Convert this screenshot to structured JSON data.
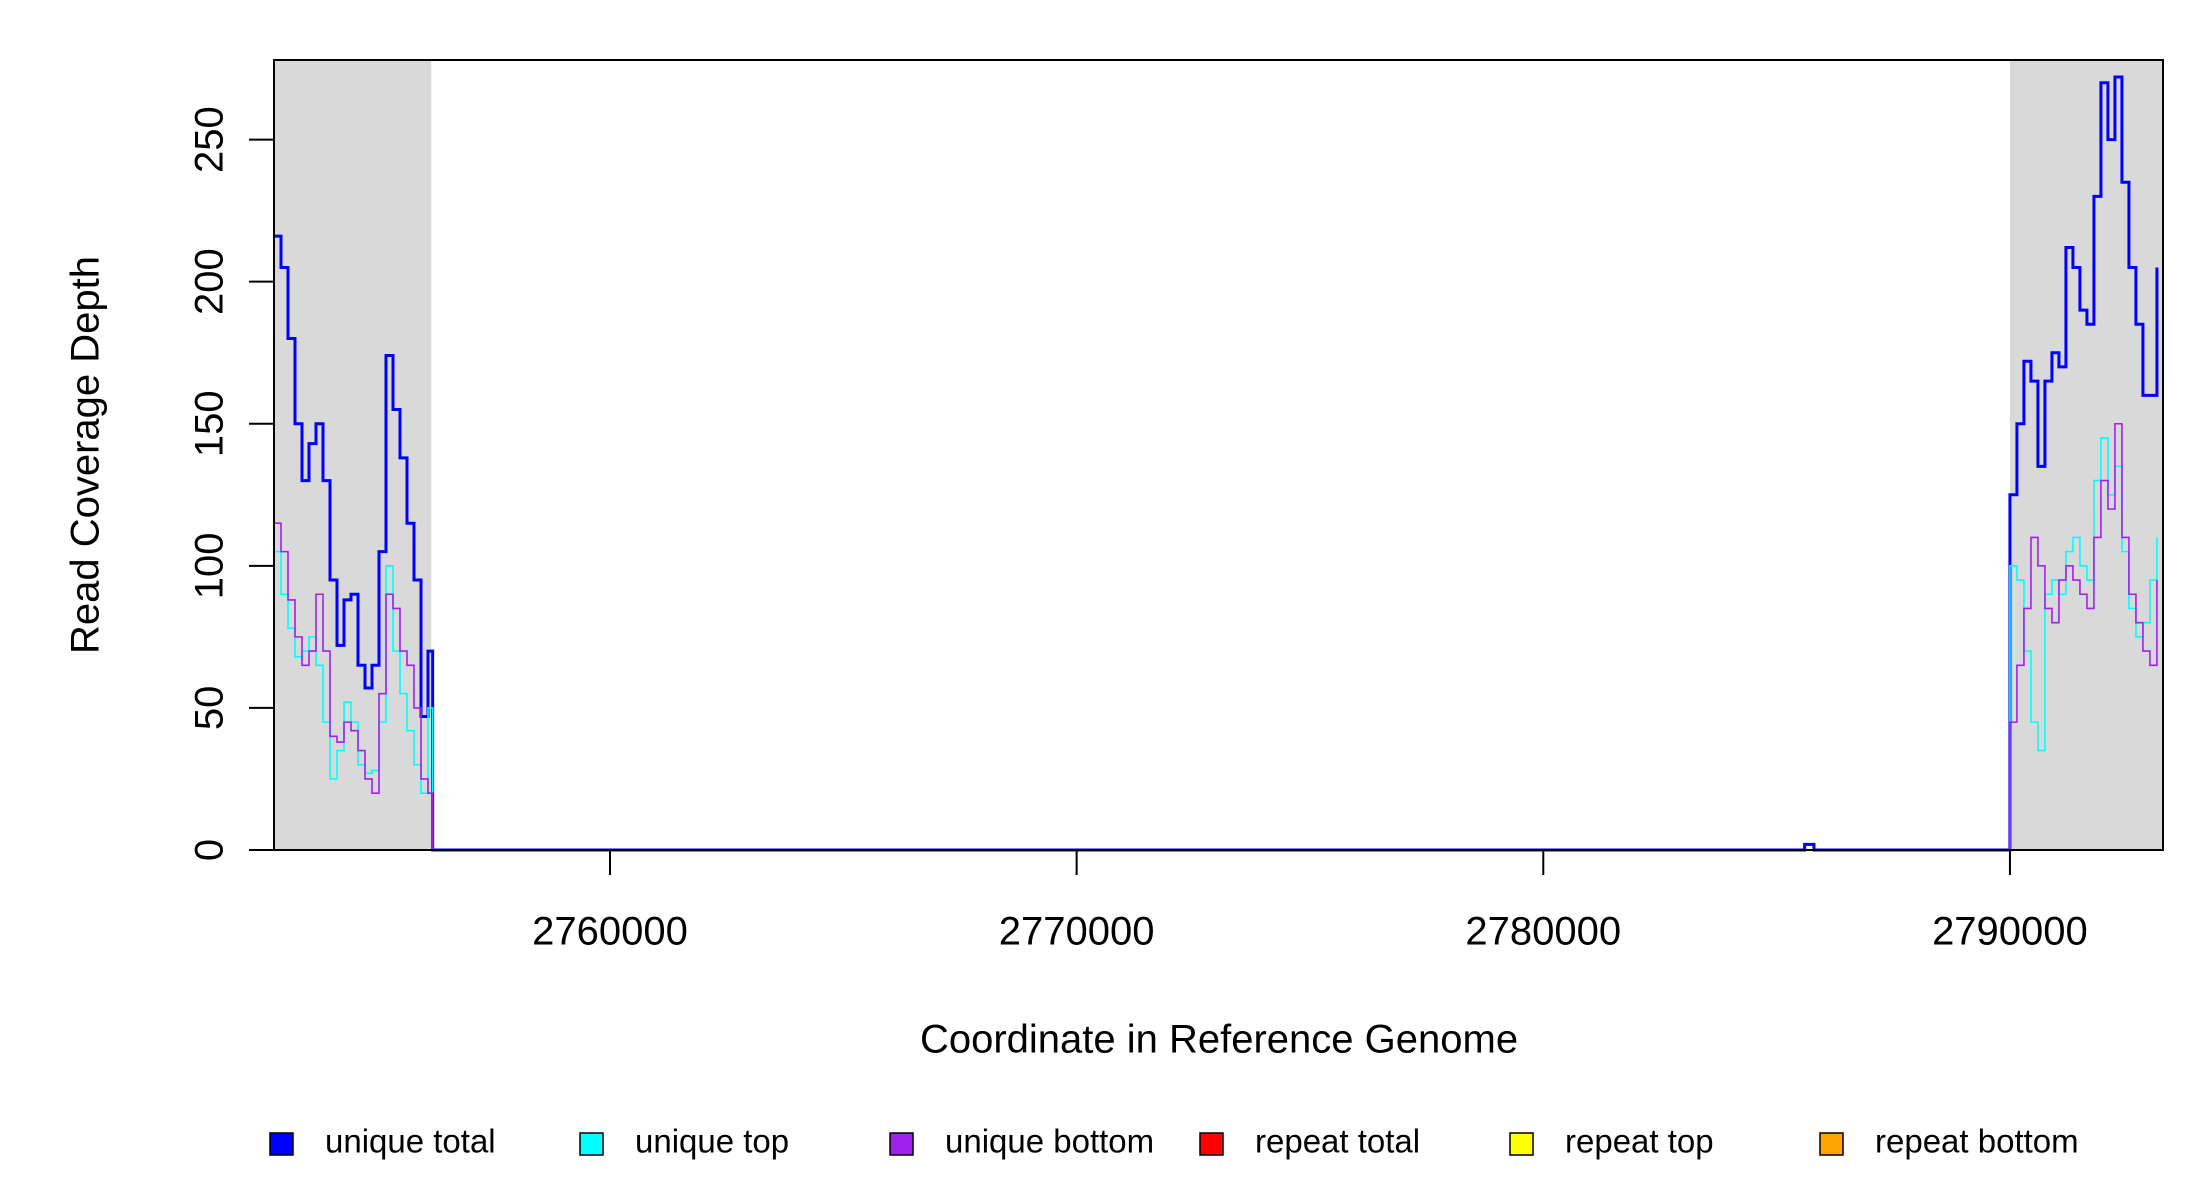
{
  "chart_data": {
    "type": "step",
    "x_label": "Coordinate in Reference Genome",
    "y_label": "Read Coverage Depth",
    "xlim": [
      2752800,
      2793280
    ],
    "ylim": [
      0,
      278
    ],
    "xticks": [
      2760000,
      2770000,
      2780000,
      2790000
    ],
    "yticks": [
      0,
      50,
      100,
      150,
      200,
      250
    ],
    "shaded_regions": [
      [
        2752800,
        2756170
      ],
      [
        2790000,
        2793280
      ]
    ],
    "legend_position": "bottom",
    "x": [
      2752800,
      2752950,
      2753100,
      2753250,
      2753400,
      2753550,
      2753700,
      2753850,
      2754000,
      2754150,
      2754300,
      2754450,
      2754600,
      2754750,
      2754900,
      2755050,
      2755200,
      2755350,
      2755500,
      2755650,
      2755800,
      2755950,
      2756100,
      2756200,
      2785600,
      2785800,
      2790000,
      2790150,
      2790300,
      2790450,
      2790600,
      2790750,
      2790900,
      2791050,
      2791200,
      2791350,
      2791500,
      2791650,
      2791800,
      2791950,
      2792100,
      2792250,
      2792400,
      2792550,
      2792700,
      2792850,
      2793000,
      2793150
    ],
    "series": [
      {
        "name": "unique total",
        "color": "#0000ff",
        "width": 3,
        "values": [
          216,
          205,
          180,
          150,
          130,
          143,
          150,
          130,
          95,
          72,
          88,
          90,
          65,
          57,
          65,
          105,
          174,
          155,
          138,
          115,
          95,
          47,
          70,
          0,
          2,
          0,
          125,
          150,
          172,
          165,
          135,
          165,
          175,
          170,
          212,
          205,
          190,
          185,
          230,
          270,
          250,
          272,
          235,
          205,
          185,
          160,
          160,
          205
        ]
      },
      {
        "name": "unique top",
        "color": "#00ffff",
        "width": 1.6,
        "values": [
          105,
          90,
          78,
          68,
          70,
          75,
          65,
          45,
          25,
          35,
          52,
          45,
          30,
          27,
          28,
          45,
          100,
          70,
          55,
          42,
          30,
          20,
          50,
          0,
          0,
          0,
          100,
          95,
          70,
          45,
          35,
          90,
          95,
          90,
          105,
          110,
          100,
          95,
          130,
          145,
          125,
          135,
          105,
          85,
          75,
          80,
          95,
          110
        ]
      },
      {
        "name": "unique bottom",
        "color": "#a020f0",
        "width": 1.6,
        "values": [
          115,
          105,
          88,
          75,
          65,
          70,
          90,
          70,
          40,
          38,
          45,
          42,
          35,
          25,
          20,
          55,
          90,
          85,
          70,
          65,
          50,
          25,
          20,
          0,
          0,
          0,
          45,
          65,
          85,
          110,
          100,
          85,
          80,
          95,
          100,
          95,
          90,
          85,
          110,
          130,
          120,
          150,
          110,
          90,
          80,
          70,
          65,
          95
        ]
      },
      {
        "name": "repeat total",
        "color": "#ff0000",
        "width": 1.6,
        "values": [
          0,
          0,
          0,
          0,
          0,
          0,
          0,
          0,
          0,
          0,
          0,
          0,
          0,
          0,
          0,
          0,
          0,
          0,
          0,
          0,
          0,
          0,
          0,
          0,
          0,
          0,
          0,
          0,
          0,
          0,
          0,
          0,
          0,
          0,
          0,
          0,
          0,
          0,
          0,
          0,
          0,
          0,
          0,
          0,
          0,
          0,
          0,
          0
        ]
      },
      {
        "name": "repeat top",
        "color": "#ffff00",
        "width": 1.6,
        "values": [
          0,
          0,
          0,
          0,
          0,
          0,
          0,
          0,
          0,
          0,
          0,
          0,
          0,
          0,
          0,
          0,
          0,
          0,
          0,
          0,
          0,
          0,
          0,
          0,
          0,
          0,
          0,
          0,
          0,
          0,
          0,
          0,
          0,
          0,
          0,
          0,
          0,
          0,
          0,
          0,
          0,
          0,
          0,
          0,
          0,
          0,
          0,
          0
        ]
      },
      {
        "name": "repeat bottom",
        "color": "#ffa500",
        "width": 1.6,
        "values": [
          0,
          0,
          0,
          0,
          0,
          0,
          0,
          0,
          0,
          0,
          0,
          0,
          0,
          0,
          0,
          0,
          0,
          0,
          0,
          0,
          0,
          0,
          0,
          0,
          0,
          0,
          0,
          0,
          0,
          0,
          0,
          0,
          0,
          0,
          0,
          0,
          0,
          0,
          0,
          0,
          0,
          0,
          0,
          0,
          0,
          0,
          0,
          0
        ]
      }
    ]
  }
}
